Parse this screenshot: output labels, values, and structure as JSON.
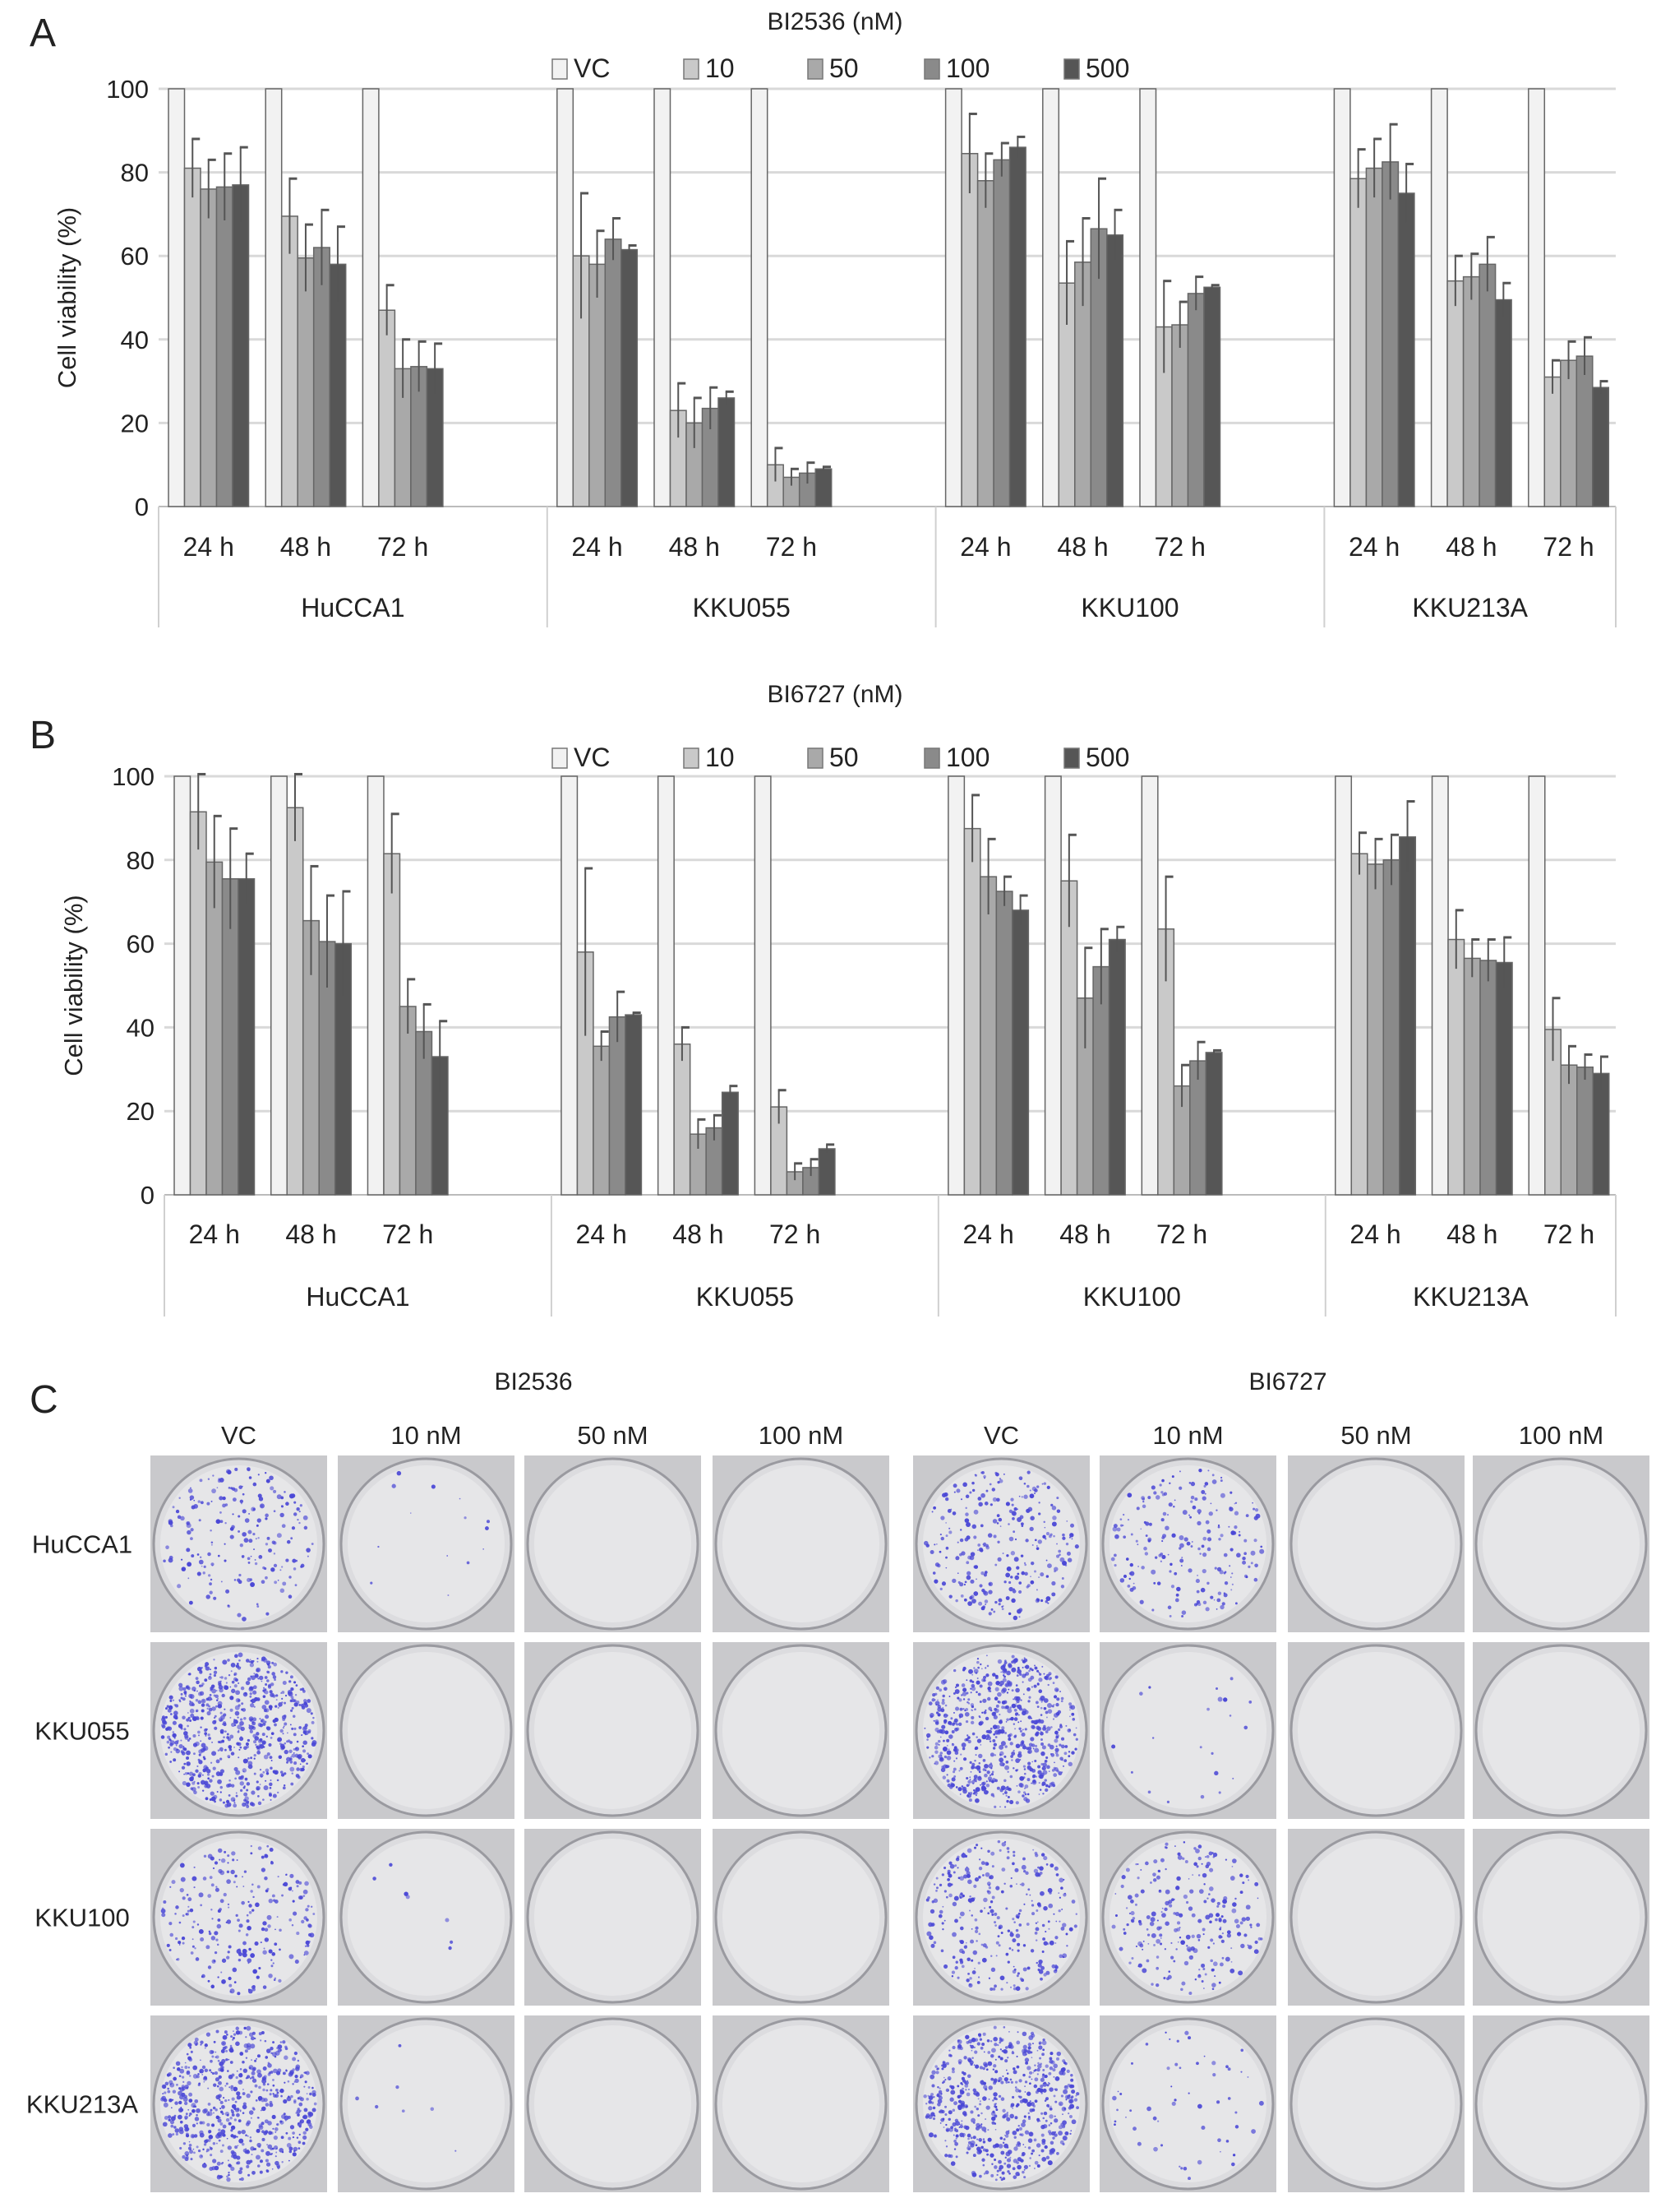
{
  "chart_data": [
    {
      "panel": "A",
      "type": "bar",
      "title": "BI2536 (nM)",
      "ylabel": "Cell viability (%)",
      "ylim": [
        0,
        100
      ],
      "yticks": [
        0,
        20,
        40,
        60,
        80,
        100
      ],
      "grid": true,
      "legend_placement": "top",
      "series_names": [
        "VC",
        "10",
        "50",
        "100",
        "500"
      ],
      "series_colors": [
        "#f2f2f2",
        "#c9c9c9",
        "#a9a9a9",
        "#8a8a8a",
        "#565656"
      ],
      "groups": [
        {
          "name": "HuCCA1",
          "times": [
            {
              "label": "24 h",
              "values": [
                100,
                81,
                76,
                76.5,
                77
              ],
              "err": [
                0,
                7,
                7,
                8,
                9
              ]
            },
            {
              "label": "48 h",
              "values": [
                100,
                69.5,
                59.5,
                62,
                58
              ],
              "err": [
                0,
                9,
                8,
                9,
                9
              ]
            },
            {
              "label": "72 h",
              "values": [
                100,
                47,
                33,
                33.5,
                33
              ],
              "err": [
                0,
                6,
                7,
                6,
                6
              ]
            }
          ]
        },
        {
          "name": "KKU055",
          "times": [
            {
              "label": "24 h",
              "values": [
                100,
                60,
                58,
                64,
                61.5
              ],
              "err": [
                0,
                15,
                8,
                5,
                1
              ]
            },
            {
              "label": "48 h",
              "values": [
                100,
                23,
                20,
                23.5,
                26
              ],
              "err": [
                0,
                6.5,
                6,
                5,
                1.5
              ]
            },
            {
              "label": "72 h",
              "values": [
                100,
                10,
                7,
                8,
                9
              ],
              "err": [
                0,
                4,
                2,
                2.5,
                0.5
              ]
            }
          ]
        },
        {
          "name": "KKU100",
          "times": [
            {
              "label": "24 h",
              "values": [
                100,
                84.5,
                78,
                83,
                86
              ],
              "err": [
                0,
                9.5,
                6.5,
                4,
                2.5
              ]
            },
            {
              "label": "48 h",
              "values": [
                100,
                53.5,
                58.5,
                66.5,
                65
              ],
              "err": [
                0,
                10,
                10.5,
                12,
                6
              ]
            },
            {
              "label": "72 h",
              "values": [
                100,
                43,
                43.5,
                51,
                52.5
              ],
              "err": [
                0,
                11,
                5.5,
                4,
                0.5
              ]
            }
          ]
        },
        {
          "name": "KKU213A",
          "times": [
            {
              "label": "24 h",
              "values": [
                100,
                78.5,
                81,
                82.5,
                75
              ],
              "err": [
                0,
                7,
                7,
                9,
                7
              ]
            },
            {
              "label": "48 h",
              "values": [
                100,
                54,
                55,
                58,
                49.5
              ],
              "err": [
                0,
                6,
                5.5,
                6.5,
                4
              ]
            },
            {
              "label": "72 h",
              "values": [
                100,
                31,
                35,
                36,
                28.5
              ],
              "err": [
                0,
                4,
                4.5,
                4.5,
                1.5
              ]
            }
          ]
        }
      ]
    },
    {
      "panel": "B",
      "type": "bar",
      "title": "BI6727 (nM)",
      "ylabel": "Cell viability (%)",
      "ylim": [
        0,
        100
      ],
      "yticks": [
        0,
        20,
        40,
        60,
        80,
        100
      ],
      "grid": true,
      "legend_placement": "top",
      "series_names": [
        "VC",
        "10",
        "50",
        "100",
        "500"
      ],
      "series_colors": [
        "#f2f2f2",
        "#c9c9c9",
        "#a9a9a9",
        "#8a8a8a",
        "#565656"
      ],
      "groups": [
        {
          "name": "HuCCA1",
          "times": [
            {
              "label": "24 h",
              "values": [
                100,
                91.5,
                79.5,
                75.5,
                75.5
              ],
              "err": [
                0,
                9,
                11,
                12,
                6
              ]
            },
            {
              "label": "48 h",
              "values": [
                100,
                92.5,
                65.5,
                60.5,
                60
              ],
              "err": [
                0,
                8,
                13,
                11,
                12.5
              ]
            },
            {
              "label": "72 h",
              "values": [
                100,
                81.5,
                45,
                39,
                33
              ],
              "err": [
                0,
                9.5,
                6.5,
                6.5,
                8.5
              ]
            }
          ]
        },
        {
          "name": "KKU055",
          "times": [
            {
              "label": "24 h",
              "values": [
                100,
                58,
                35.5,
                42.5,
                43
              ],
              "err": [
                0,
                20,
                3.5,
                6,
                0.5
              ]
            },
            {
              "label": "48 h",
              "values": [
                100,
                36,
                14.5,
                16,
                24.5
              ],
              "err": [
                0,
                4,
                3.5,
                3,
                1.5
              ]
            },
            {
              "label": "72 h",
              "values": [
                100,
                21,
                5.5,
                6.5,
                11
              ],
              "err": [
                0,
                4,
                2,
                2,
                1
              ]
            }
          ]
        },
        {
          "name": "KKU100",
          "times": [
            {
              "label": "24 h",
              "values": [
                100,
                87.5,
                76,
                72.5,
                68
              ],
              "err": [
                0,
                8,
                9,
                3.5,
                3.5
              ]
            },
            {
              "label": "48 h",
              "values": [
                100,
                75,
                47,
                54.5,
                61
              ],
              "err": [
                0,
                11,
                12,
                9,
                3
              ]
            },
            {
              "label": "72 h",
              "values": [
                100,
                63.5,
                26,
                32,
                34
              ],
              "err": [
                0,
                12.5,
                5,
                4.5,
                0.5
              ]
            }
          ]
        },
        {
          "name": "KKU213A",
          "times": [
            {
              "label": "24 h",
              "values": [
                100,
                81.5,
                79,
                80,
                85.5
              ],
              "err": [
                0,
                5,
                6,
                6,
                8.5
              ]
            },
            {
              "label": "48 h",
              "values": [
                100,
                61,
                56.5,
                56,
                55.5
              ],
              "err": [
                0,
                7,
                4.5,
                5,
                6
              ]
            },
            {
              "label": "72 h",
              "values": [
                100,
                39.5,
                31,
                30.5,
                29
              ],
              "err": [
                0,
                7.5,
                4.5,
                3,
                4
              ]
            }
          ]
        }
      ]
    }
  ],
  "panel_c": {
    "letter": "C",
    "drug_titles": [
      "BI2536",
      "BI6727"
    ],
    "column_headers": [
      "VC",
      "10 nM",
      "50 nM",
      "100 nM",
      "VC",
      "10 nM",
      "50 nM",
      "100 nM"
    ],
    "row_labels": [
      "HuCCA1",
      "KKU055",
      "KKU100",
      "KKU213A"
    ],
    "colony_color": "#4b48d6",
    "colony_density": [
      [
        0.3,
        0.02,
        0,
        0,
        0.4,
        0.3,
        0,
        0
      ],
      [
        1.0,
        0,
        0,
        0,
        1.0,
        0.03,
        0,
        0
      ],
      [
        0.35,
        0.01,
        0,
        0,
        0.45,
        0.35,
        0,
        0
      ],
      [
        0.9,
        0.01,
        0,
        0,
        0.9,
        0.08,
        0,
        0
      ]
    ]
  }
}
